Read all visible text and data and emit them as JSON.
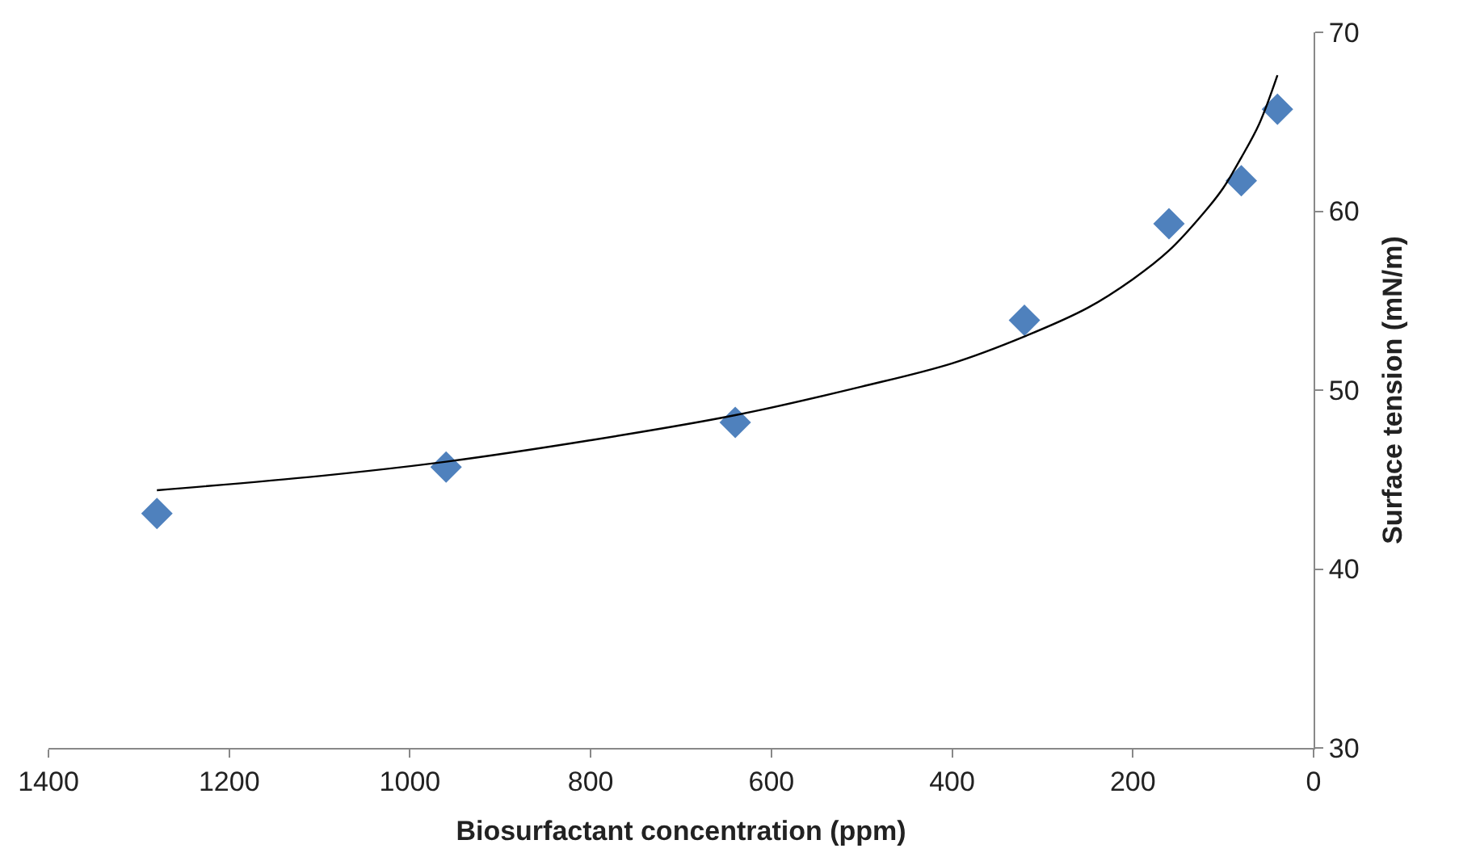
{
  "chart_data": {
    "type": "scatter",
    "xlabel": "Biosurfactant concentration (ppm)",
    "ylabel": "Surface tension (mN/m)",
    "xlim": [
      1400,
      0
    ],
    "xticks": [
      0,
      200,
      400,
      600,
      800,
      1000,
      1200,
      1400
    ],
    "ylim": [
      30,
      70
    ],
    "yticks": [
      30,
      40,
      50,
      60,
      70
    ],
    "series": [
      {
        "marker": "diamond",
        "color": "#4f81bd",
        "x": [
          1280,
          960,
          640,
          320,
          160,
          80,
          40
        ],
        "values": [
          43.1,
          45.7,
          48.2,
          53.9,
          59.3,
          61.7,
          65.7
        ]
      },
      {
        "type": "line",
        "marker": "none",
        "line_style": "solid",
        "color": "#000000",
        "x": [
          1280,
          1100,
          960,
          800,
          640,
          500,
          400,
          320,
          250,
          200,
          160,
          120,
          100,
          80,
          60,
          40
        ],
        "values": [
          44.4,
          45.2,
          46.0,
          47.2,
          48.6,
          50.2,
          51.5,
          53.0,
          54.6,
          56.2,
          57.8,
          60.0,
          61.3,
          63.0,
          64.9,
          67.6
        ]
      }
    ]
  }
}
